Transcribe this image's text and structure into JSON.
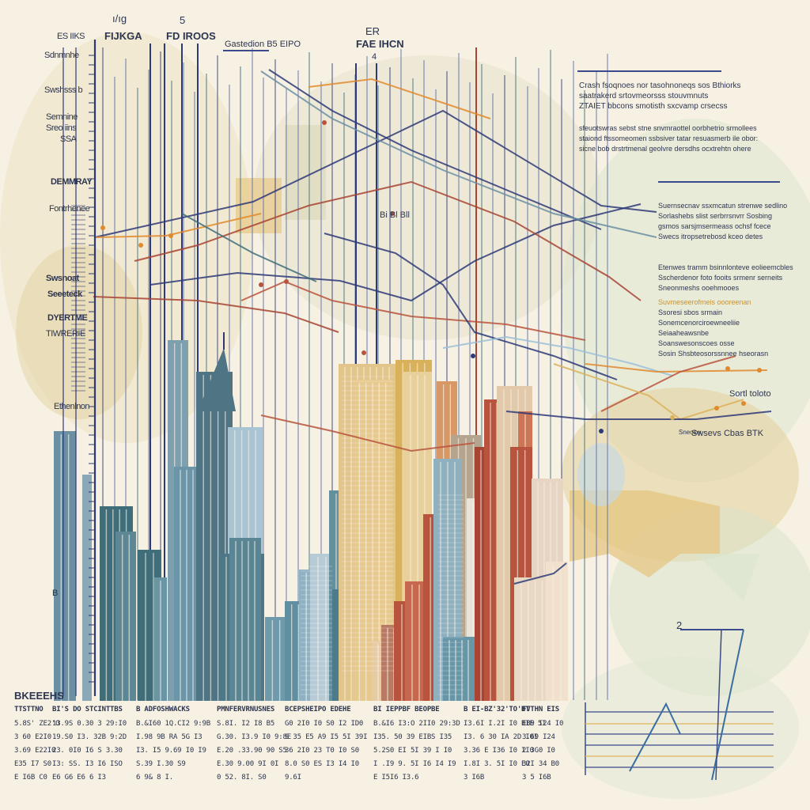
{
  "top_labels": {
    "t1": "ı/ıg",
    "t2": "5",
    "t3": "FIJKGA",
    "t4": "FD IROOS",
    "t5": "Gastedion B5 EIPO",
    "t6": "ER",
    "t7": "FAE IHCN",
    "t8": "4"
  },
  "left_labels": {
    "l1": "ES IIKS",
    "l2": "Sdnmnhe",
    "l3": "Swshsss b",
    "l4": "Semnine",
    "l5": "Sreo iins",
    "l6": "SSA",
    "l7": "DEMMRAY",
    "l8": "Fontrhenee",
    "l9": "Swsnoat",
    "l10": "Seeeteck",
    "l11": "DYERTME",
    "l12": "TIWRERIE",
    "l13": "Ethenlnon"
  },
  "chart_marks": {
    "m1": "B",
    "m2": "Bi  Bl  Bll",
    "m3": "Sortl toloto",
    "m4": "Swsevs  Cbas  BTK",
    "m5": "Sneosw",
    "m6": "2"
  },
  "right_notes": {
    "block1": [
      "Crash fsoqnoes nor tasohnoneqs sos Bthiorks",
      "saatrakerd srtovmeorsss stouvmnuts",
      "ZTAIET bbcons smotisth sxcvamp crsecss"
    ],
    "block2": [
      "sfeuotswras sebst stne snvmraottel oorbhetrio srmollees",
      "staiond ftssomeomen ssbsiver tatar resuasmerb ile obor:",
      "sicne bob drstrtmenal geolvre dersdhs ocxtrehtn ohere"
    ],
    "block3": [
      "Suernsecnav ssxmcatun strenwe sedlino",
      "Sorlashebs slist serbrrsnvrr Sosbing",
      "gsmos sarsjmsermeass ochsf fcece",
      "Swecs itropsetrebosd kceo detes"
    ],
    "block4": [
      "Etenwes tramm bsinnlonteve eolieemcbles",
      "Sscherdenor foto fooits srmenr serneits",
      "Sneonmeshs ooehmooes"
    ],
    "block5": [
      "Suvmeseerofmeis oooreenan",
      "Ssoresi sbos srmain",
      "Sonemcenorciroewneeliie",
      "Seiaaheawsnbe",
      "Soanswesonscoes osse",
      "Sosin Shsbteosorssnnee hseorasn"
    ]
  },
  "table": {
    "title": "BKEEEHS",
    "headers": [
      "TTSTTNO",
      "BI'S DO  STCINTTBS",
      "B ADFOSHWACKS",
      "PMNFERVRNUSNES",
      "BCEPSHEIPO EDEHE",
      "BI IEPPBF BEOPBE",
      "B EI-BZ'32'TO'BT",
      "FVTHN EIS"
    ],
    "rows": [
      [
        "5.8S' ZE2'O",
        "13.9S  0.30 3 29:I0",
        "B.&I60  1Q.CI2 9:9B",
        "S.8I. I2  I8 B5",
        "G0 2I0 I0 S0 I2 ID0",
        "B.&I6 I3:O 2II0 29:3D",
        "I3.6I I.2I I0 BIE 5I",
        "EB9 I24 I0"
      ],
      [
        "3 60 E2I0",
        "19.S0  I3. 32B 9:2D",
        "I.98 9B  RA 5G  I3",
        "G.30. I3.9 I0  9:8E",
        "S 35 E5 A9 I5  5I 39I",
        "I35.  50 39 EIBS I35",
        "I3. 6  30 IA 2D I0I",
        "3.69 I24"
      ],
      [
        "3.69 E22I0",
        "23. 0I0  I6 S 3.30",
        "I3.  I5 9.69 I0 I9",
        "E.20 .33.90 90 S5",
        "36 2I0  23 T0 I0 S0",
        "5.2S0  EI 5I 39 I I0",
        "3.36 E I36 I0 II0",
        "2 3G0 I0"
      ],
      [
        "E35 I7 S0",
        "I3:  SS. I3  I6 ISO",
        "S.39  I.30 S9",
        "E.30 9.00 9I 0I",
        "8.0 S0 ES I3 I4 I0",
        "I .I9 9. 5I I6  I4 I9",
        "I.8I 3. 5I I0 E0",
        "32I 34 B0"
      ],
      [
        "E I6B  C0",
        "E6 G6   E6 6 I3",
        "6 9& 8   I.",
        "0  52. 8I. S0",
        "9.6I",
        "E I5I6    I3.6",
        "3 I6B",
        "3  5 I6B"
      ]
    ]
  },
  "palette": {
    "paper": "#f6f1e2",
    "navy": "#2e3a78",
    "teal": "#3f6e7a",
    "steel": "#6b8fa3",
    "sand": "#e2c58b",
    "mustard": "#d9b15a",
    "rust": "#b8533e",
    "brick": "#a84434",
    "orange": "#e08a2e",
    "sky": "#9cc0d8",
    "sage": "#b8c9a4"
  }
}
